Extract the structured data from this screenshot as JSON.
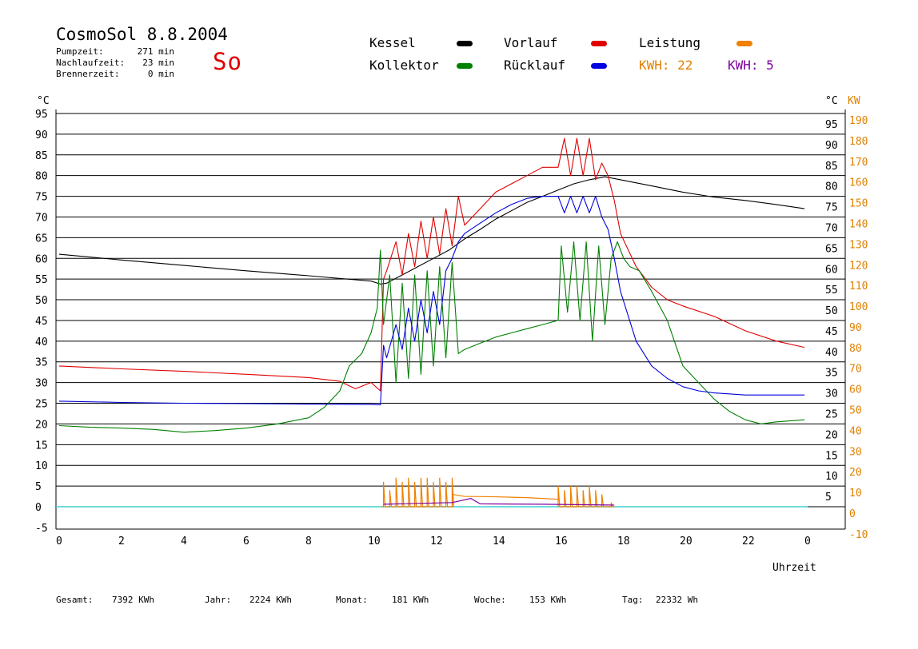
{
  "header": {
    "title": "CosmoSol 8.8.2004",
    "day": "So",
    "info": [
      {
        "label": "Pumpzeit:",
        "value": "271 min"
      },
      {
        "label": "Nachlaufzeit:",
        "value": "23 min"
      },
      {
        "label": "Brennerzeit:",
        "value": "0 min"
      }
    ]
  },
  "legend": {
    "kessel": {
      "label": "Kessel",
      "color": "#000000"
    },
    "vorlauf": {
      "label": "Vorlauf",
      "color": "#e00000"
    },
    "leistung": {
      "label": "Leistung",
      "color": "#f08000"
    },
    "kollektor": {
      "label": "Kollektor",
      "color": "#008000"
    },
    "ruecklauf": {
      "label": "Rücklauf",
      "color": "#0000e0"
    },
    "kwh1": "KWH: 22",
    "kwh1_color": "#e08000",
    "kwh2": "KWH: 5",
    "kwh2_color": "#8000a0"
  },
  "footer": [
    {
      "label": "Gesamt:",
      "value": "7392 KWh"
    },
    {
      "label": "Jahr:",
      "value": "2224 KWh"
    },
    {
      "label": "Monat:",
      "value": "181 KWh"
    },
    {
      "label": "Woche:",
      "value": "153 KWh"
    },
    {
      "label": "Tag:",
      "value": "22332 Wh"
    }
  ],
  "chart_data": {
    "type": "line",
    "xlabel": "Uhrzeit",
    "ylabel_left": "°C",
    "ylabel_right_1": "°C",
    "ylabel_right_2": "KW",
    "xlim": [
      0,
      24
    ],
    "ylim": [
      -5,
      95
    ],
    "x_ticks": [
      "0",
      "2",
      "4",
      "6",
      "8",
      "10",
      "12",
      "14",
      "16",
      "18",
      "20",
      "22",
      "0"
    ],
    "y_ticks_left": [
      "95",
      "90",
      "85",
      "80",
      "75",
      "70",
      "65",
      "60",
      "55",
      "50",
      "45",
      "40",
      "35",
      "30",
      "25",
      "20",
      "15",
      "10",
      "5",
      "0",
      "-5"
    ],
    "y_ticks_right": [
      "95",
      "90",
      "85",
      "80",
      "75",
      "70",
      "65",
      "60",
      "55",
      "50",
      "45",
      "40",
      "35",
      "30",
      "25",
      "20",
      "15",
      "10",
      "5"
    ],
    "kw_ticks": [
      "190",
      "180",
      "170",
      "160",
      "150",
      "140",
      "130",
      "120",
      "110",
      "100",
      "90",
      "80",
      "70",
      "60",
      "50",
      "40",
      "30",
      "20",
      "10",
      "0",
      "-10"
    ],
    "grid": true,
    "series": [
      {
        "name": "Kessel",
        "color": "#000000",
        "x": [
          0,
          2,
          4,
          6,
          8,
          10,
          10.3,
          10.5,
          11,
          11.5,
          12,
          12.5,
          13,
          13.5,
          14,
          14.5,
          15,
          15.5,
          16,
          16.5,
          17,
          17.5,
          18,
          19,
          20,
          21,
          22,
          23,
          23.9
        ],
        "y": [
          61,
          59.6,
          58.3,
          57,
          55.8,
          54.5,
          53.8,
          54,
          56,
          58,
          60,
          62,
          64.7,
          67,
          69.5,
          71.5,
          73.5,
          75,
          76.5,
          78,
          79,
          79.7,
          79,
          77.5,
          76,
          74.8,
          74,
          73,
          72
        ]
      },
      {
        "name": "Vorlauf",
        "color": "#e00000",
        "x": [
          0,
          2,
          4,
          6,
          8,
          9,
          9.5,
          10,
          10.3,
          10.4,
          10.5,
          10.8,
          11,
          11.2,
          11.4,
          11.6,
          11.8,
          12,
          12.2,
          12.4,
          12.6,
          12.8,
          13,
          13.5,
          14,
          14.5,
          15,
          15.5,
          16,
          16.2,
          16.4,
          16.6,
          16.8,
          17,
          17.2,
          17.4,
          17.6,
          17.8,
          18,
          18.5,
          19,
          19.5,
          20,
          21,
          22,
          23,
          23.9
        ],
        "y": [
          34,
          33.3,
          32.7,
          32,
          31.2,
          30.3,
          28.5,
          30,
          28,
          55,
          57,
          64,
          56,
          66,
          58,
          69,
          60,
          70,
          61,
          72,
          63,
          75,
          68,
          72,
          76,
          78,
          80,
          82,
          82,
          89,
          80,
          89,
          80,
          89,
          79,
          83,
          80,
          74,
          66,
          58,
          53,
          50,
          48.5,
          46,
          42.5,
          40,
          38.5
        ]
      },
      {
        "name": "Kollektor",
        "color": "#008000",
        "x": [
          0,
          1,
          2,
          3,
          4,
          5,
          6,
          7,
          8,
          8.5,
          9,
          9.3,
          9.7,
          10,
          10.2,
          10.3,
          10.4,
          10.6,
          10.8,
          11,
          11.2,
          11.4,
          11.6,
          11.8,
          12,
          12.2,
          12.4,
          12.6,
          12.8,
          13,
          13.5,
          14,
          14.5,
          15,
          15.5,
          16,
          16.1,
          16.3,
          16.5,
          16.7,
          16.9,
          17.1,
          17.3,
          17.5,
          17.7,
          17.9,
          18.1,
          18.3,
          18.6,
          19,
          19.5,
          20,
          20.5,
          21,
          21.5,
          22,
          22.5,
          23,
          23.9
        ],
        "y": [
          19.6,
          19.2,
          19,
          18.7,
          18,
          18.4,
          19,
          20,
          21.5,
          24,
          28,
          34,
          37,
          42,
          48,
          62,
          44,
          56,
          30,
          54,
          31,
          56,
          32,
          57,
          34,
          58,
          36,
          59,
          37,
          38,
          39.5,
          41,
          42,
          43,
          44,
          45,
          63,
          47,
          64,
          45,
          64,
          40,
          63,
          44,
          60,
          64,
          60,
          58,
          57,
          52,
          45,
          34,
          30,
          26,
          23,
          21,
          20,
          20.5,
          21
        ]
      },
      {
        "name": "Rücklauf",
        "color": "#0000e0",
        "x": [
          0,
          2,
          4,
          6,
          8,
          10,
          10.3,
          10.4,
          10.5,
          10.8,
          11,
          11.2,
          11.4,
          11.6,
          11.8,
          12,
          12.2,
          12.4,
          12.6,
          12.8,
          13,
          13.5,
          14,
          14.5,
          15,
          15.5,
          16,
          16.2,
          16.4,
          16.6,
          16.8,
          17,
          17.2,
          17.4,
          17.6,
          17.8,
          18,
          18.5,
          19,
          19.5,
          20,
          20.5,
          21,
          22,
          23,
          23.9
        ],
        "y": [
          25.5,
          25.2,
          25,
          24.9,
          24.8,
          24.7,
          24.6,
          39,
          36,
          44,
          38,
          48,
          40,
          50,
          42,
          52,
          44,
          57,
          60,
          64,
          66,
          68.5,
          71,
          73,
          74.5,
          75,
          75,
          71,
          75,
          71,
          75,
          71,
          75,
          70,
          67,
          60,
          52,
          40,
          34,
          31,
          29,
          28,
          27.5,
          27,
          27,
          27
        ]
      }
    ],
    "power": {
      "name": "Leistung",
      "color": "#f08000",
      "bursts_x": [
        10.4,
        10.6,
        10.8,
        11.0,
        11.2,
        11.4,
        11.6,
        11.8,
        12.0,
        12.2,
        12.4,
        12.6,
        16.0,
        16.2,
        16.4,
        16.6,
        16.8,
        17.0,
        17.2,
        17.4,
        17.7
      ],
      "bursts_y": [
        6,
        4,
        7,
        6,
        7,
        6,
        7,
        7,
        6,
        7,
        6,
        7,
        5,
        4,
        5,
        5,
        4,
        5,
        4,
        3,
        1
      ],
      "plateau": [
        [
          12.6,
          3
        ],
        [
          13.0,
          2.5
        ],
        [
          14.0,
          2.4
        ],
        [
          15.0,
          2.2
        ],
        [
          16.0,
          1.8
        ]
      ],
      "secondary_color": "#8000a0",
      "secondary": [
        [
          10.4,
          0.6
        ],
        [
          12.6,
          1.0
        ],
        [
          13.2,
          2.0
        ],
        [
          13.5,
          0.7
        ],
        [
          15.5,
          0.6
        ],
        [
          17.8,
          0.4
        ]
      ]
    },
    "baseline": {
      "color": "#40d0d0",
      "y": 0
    }
  }
}
